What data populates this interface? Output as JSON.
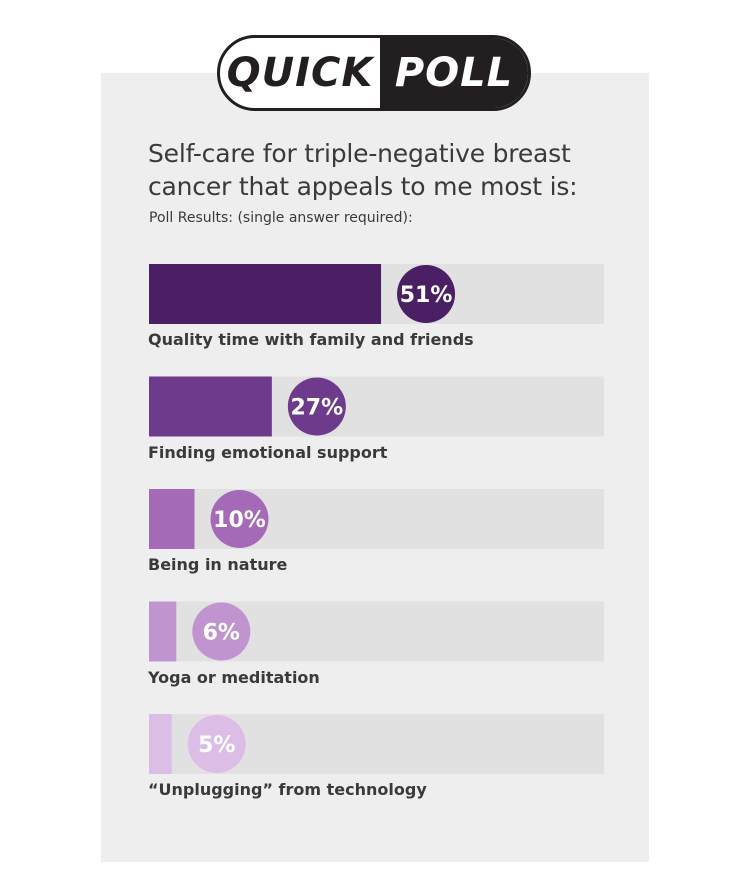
{
  "header": {
    "badge_left": "QUICK",
    "badge_right": "POLL"
  },
  "question": "Self-care for triple-negative breast cancer that appeals to me most is:",
  "subtitle": "Poll Results: (single answer required):",
  "colors": {
    "track": "#e2e1e2",
    "card": "#efeeef",
    "bars": [
      "#4a1f63",
      "#6e3a8b",
      "#a46ab8",
      "#c095cf",
      "#dbbde5"
    ],
    "dark_text": "#3a3a3a"
  },
  "chart_data": {
    "type": "bar",
    "orientation": "horizontal",
    "categories": [
      "Quality time with family and friends",
      "Finding emotional support",
      "Being in nature",
      "Yoga or meditation",
      "“Unplugging” from technology"
    ],
    "values": [
      51,
      27,
      10,
      6,
      5
    ],
    "value_labels": [
      "51%",
      "27%",
      "10%",
      "6%",
      "5%"
    ],
    "unit": "%",
    "xlim": [
      0,
      100
    ]
  }
}
